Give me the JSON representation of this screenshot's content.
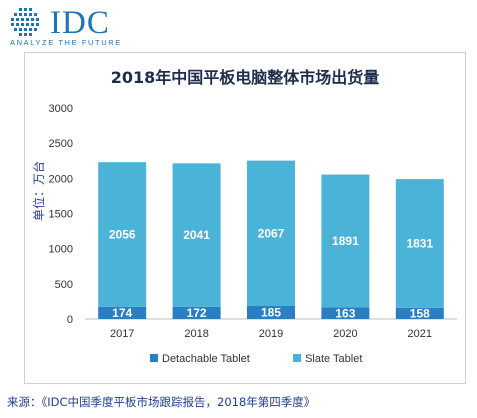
{
  "logo": {
    "name": "IDC",
    "tagline": "ANALYZE THE FUTURE"
  },
  "source_note": "来源：《IDC中国季度平板市场跟踪报告，2018年第四季度》",
  "colors": {
    "detachable": "#2a7fc2",
    "slate": "#4cb3d8",
    "logo": "#1f73b7"
  },
  "chart_data": {
    "type": "bar",
    "stacked": true,
    "title": "2018年中国平板电脑整体市场出货量",
    "ylabel": "单位：万台",
    "xlabel": "",
    "ylim": [
      0,
      3000
    ],
    "yticks": [
      0,
      500,
      1000,
      1500,
      2000,
      2500,
      3000
    ],
    "categories": [
      "2017",
      "2018",
      "2019",
      "2020",
      "2021"
    ],
    "series": [
      {
        "name": "Detachable Tablet",
        "values": [
          174,
          172,
          185,
          163,
          158
        ]
      },
      {
        "name": "Slate Tablet",
        "values": [
          2056,
          2041,
          2067,
          1891,
          1831
        ]
      }
    ],
    "legend": "bottom",
    "grid": false
  }
}
